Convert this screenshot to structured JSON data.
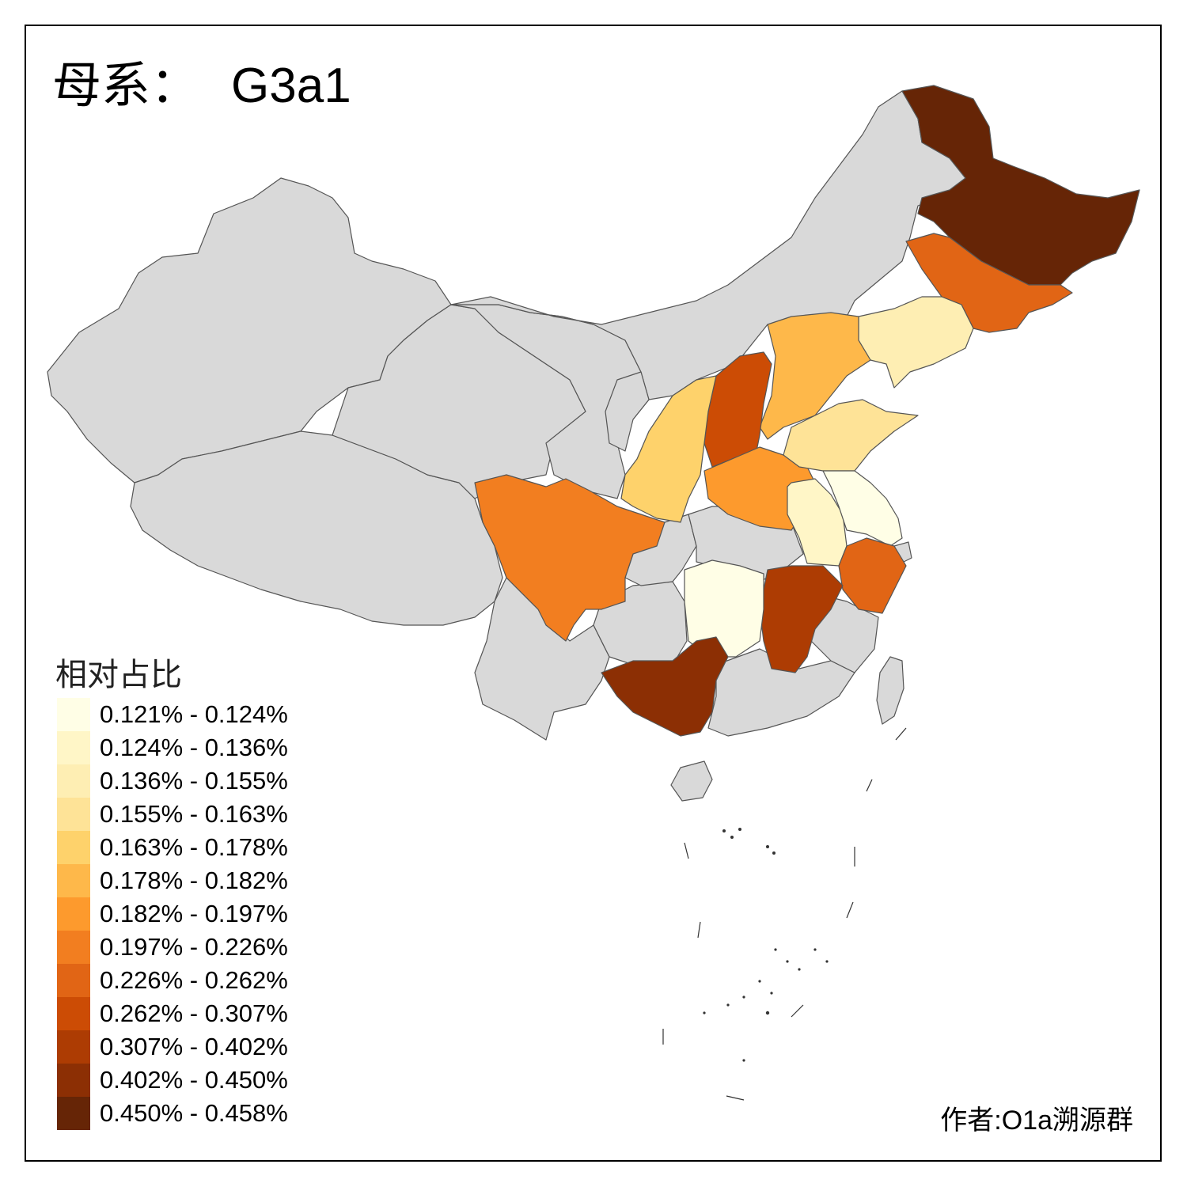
{
  "title": {
    "prefix": "母系：",
    "haplogroup": "G3a1"
  },
  "legend": {
    "title": "相对占比",
    "classes": [
      {
        "label": "0.121% - 0.124%",
        "color": "#fffee6"
      },
      {
        "label": "0.124% - 0.136%",
        "color": "#fff6c7"
      },
      {
        "label": "0.136% - 0.155%",
        "color": "#feeeb3"
      },
      {
        "label": "0.155% - 0.163%",
        "color": "#fee397"
      },
      {
        "label": "0.163% - 0.178%",
        "color": "#fed26b"
      },
      {
        "label": "0.178% - 0.182%",
        "color": "#feb84a"
      },
      {
        "label": "0.182% - 0.197%",
        "color": "#fd9a2d"
      },
      {
        "label": "0.197% - 0.226%",
        "color": "#f27e20"
      },
      {
        "label": "0.226% - 0.262%",
        "color": "#e16515"
      },
      {
        "label": "0.262% - 0.307%",
        "color": "#cc4c05"
      },
      {
        "label": "0.307% - 0.402%",
        "color": "#ad3c03"
      },
      {
        "label": "0.402% - 0.450%",
        "color": "#8c2f04"
      },
      {
        "label": "0.450% - 0.458%",
        "color": "#662506"
      }
    ]
  },
  "no_data_color": "#d9d9d9",
  "credit": "作者:O1a溯源群"
}
